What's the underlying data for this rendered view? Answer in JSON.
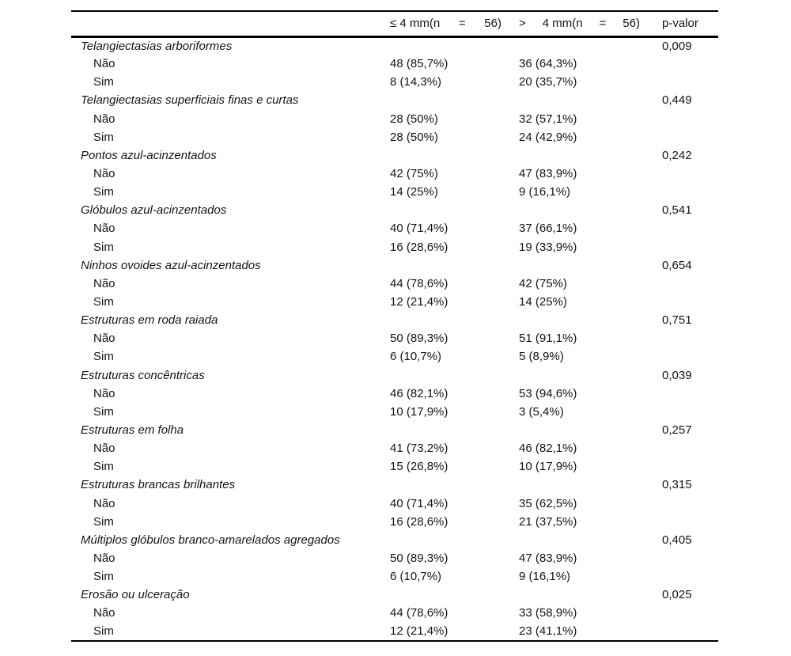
{
  "page": {
    "background": "#ffffff",
    "text_color": "#141414",
    "rule_color": "#000000"
  },
  "table": {
    "header": {
      "col2": {
        "label": "≤ 4 mm(n = 56)",
        "tokens": [
          "≤ 4 mm(n",
          "=",
          "56)"
        ]
      },
      "col3": {
        "label": "> 4 mm(n = 56)",
        "tokens": [
          ">",
          "4 mm(n",
          "=",
          "56)"
        ]
      },
      "col4": "p-valor"
    },
    "labels": {
      "no": "Não",
      "yes": "Sim"
    },
    "features": [
      {
        "name": "Telangiectasias arboriformes",
        "p": "0,009",
        "nao": [
          "48 (85,7%)",
          "36 (64,3%)"
        ],
        "sim": [
          "8 (14,3%)",
          "20 (35,7%)"
        ]
      },
      {
        "name": "Telangiectasias superficiais finas e curtas",
        "p": "0,449",
        "nao": [
          "28 (50%)",
          "32 (57,1%)"
        ],
        "sim": [
          "28 (50%)",
          "24 (42,9%)"
        ]
      },
      {
        "name": "Pontos azul-acinzentados",
        "p": "0,242",
        "nao": [
          "42 (75%)",
          "47 (83,9%)"
        ],
        "sim": [
          "14 (25%)",
          "9 (16,1%)"
        ]
      },
      {
        "name": "Glóbulos azul-acinzentados",
        "p": "0,541",
        "nao": [
          "40 (71,4%)",
          "37 (66,1%)"
        ],
        "sim": [
          "16 (28,6%)",
          "19 (33,9%)"
        ]
      },
      {
        "name": "Ninhos ovoides azul-acinzentados",
        "p": "0,654",
        "nao": [
          "44 (78,6%)",
          "42 (75%)"
        ],
        "sim": [
          "12 (21,4%)",
          "14 (25%)"
        ]
      },
      {
        "name": "Estruturas em roda raiada",
        "p": "0,751",
        "nao": [
          "50 (89,3%)",
          "51 (91,1%)"
        ],
        "sim": [
          "6 (10,7%)",
          "5 (8,9%)"
        ]
      },
      {
        "name": "Estruturas concêntricas",
        "p": "0,039",
        "nao": [
          "46 (82,1%)",
          "53 (94,6%)"
        ],
        "sim": [
          "10 (17,9%)",
          "3 (5,4%)"
        ]
      },
      {
        "name": "Estruturas em folha",
        "p": "0,257",
        "nao": [
          "41 (73,2%)",
          "46 (82,1%)"
        ],
        "sim": [
          "15 (26,8%)",
          "10 (17,9%)"
        ]
      },
      {
        "name": "Estruturas brancas brilhantes",
        "p": "0,315",
        "nao": [
          "40 (71,4%)",
          "35 (62,5%)"
        ],
        "sim": [
          "16 (28,6%)",
          "21 (37,5%)"
        ]
      },
      {
        "name": "Múltiplos glóbulos branco-amarelados agregados",
        "p": "0,405",
        "nao": [
          "50 (89,3%)",
          "47 (83,9%)"
        ],
        "sim": [
          "6 (10,7%)",
          "9 (16,1%)"
        ]
      },
      {
        "name": "Erosão ou ulceração",
        "p": "0,025",
        "nao": [
          "44 (78,6%)",
          "33 (58,9%)"
        ],
        "sim": [
          "12 (21,4%)",
          "23 (41,1%)"
        ]
      }
    ]
  }
}
